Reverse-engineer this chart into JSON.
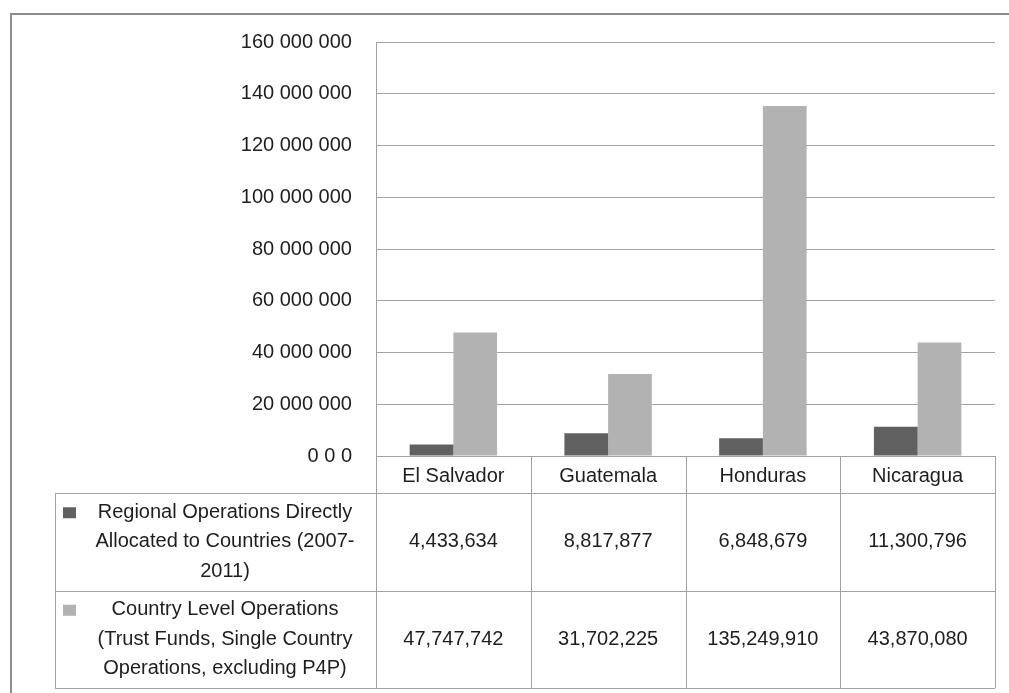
{
  "chart_data": {
    "type": "bar",
    "categories": [
      "El Salvador",
      "Guatemala",
      "Honduras",
      "Nicaragua"
    ],
    "series": [
      {
        "name": "Regional Operations Directly Allocated to Countries (2007-2011)",
        "color": "#606060",
        "values": [
          4433634,
          8817877,
          6848679,
          11300796
        ],
        "value_labels": [
          "4,433,634",
          "8,817,877",
          "6,848,679",
          "11,300,796"
        ]
      },
      {
        "name": "Country Level Operations (Trust Funds, Single Country Operations, excluding P4P)",
        "color": "#b2b2b2",
        "values": [
          47747742,
          31702225,
          135249910,
          43870080
        ],
        "value_labels": [
          "47,747,742",
          "31,702,225",
          "135,249,910",
          "43,870,080"
        ]
      }
    ],
    "ylim": [
      0,
      160000000
    ],
    "yticks": [
      {
        "value": 0,
        "label": "0 0 0"
      },
      {
        "value": 20000000,
        "label": "20 000 000"
      },
      {
        "value": 40000000,
        "label": "40 000 000"
      },
      {
        "value": 60000000,
        "label": "60 000 000"
      },
      {
        "value": 80000000,
        "label": "80 000 000"
      },
      {
        "value": 100000000,
        "label": "100 000 000"
      },
      {
        "value": 120000000,
        "label": "120 000 000"
      },
      {
        "value": 140000000,
        "label": "140 000 000"
      },
      {
        "value": 160000000,
        "label": "160 000 000"
      }
    ],
    "grid": "y",
    "legend": "bottom left"
  }
}
